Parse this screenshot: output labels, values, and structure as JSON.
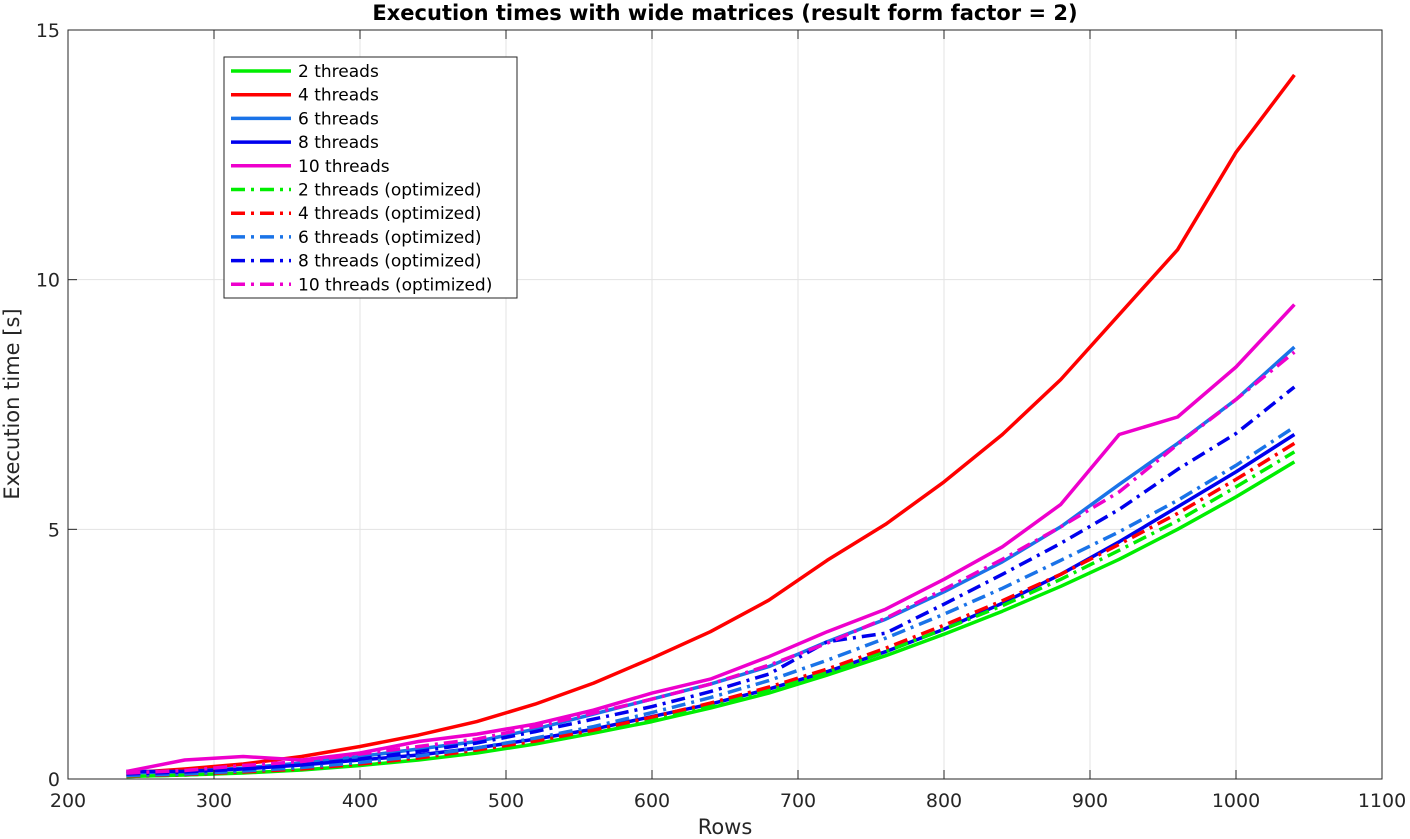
{
  "chart_data": {
    "type": "line",
    "title": "Execution times with wide matrices (result form factor = 2)",
    "xlabel": "Rows",
    "ylabel": "Execution time [s]",
    "xlim": [
      200,
      1100
    ],
    "ylim": [
      0,
      15
    ],
    "xticks": [
      "200",
      "300",
      "400",
      "500",
      "600",
      "700",
      "800",
      "900",
      "1000",
      "1100"
    ],
    "yticks": [
      "0",
      "5",
      "10",
      "15"
    ],
    "xtick_values": [
      200,
      300,
      400,
      500,
      600,
      700,
      800,
      900,
      1000,
      1100
    ],
    "ytick_values": [
      0,
      5,
      10,
      15
    ],
    "grid": true,
    "legend_position": "top-left",
    "x": [
      240,
      280,
      320,
      360,
      400,
      440,
      480,
      520,
      560,
      600,
      640,
      680,
      720,
      760,
      800,
      840,
      880,
      920,
      960,
      1000,
      1040
    ],
    "series": [
      {
        "name": "2 threads",
        "color": "#00ee00",
        "dash": "solid",
        "values": [
          0.05,
          0.08,
          0.12,
          0.18,
          0.27,
          0.38,
          0.52,
          0.7,
          0.92,
          1.15,
          1.42,
          1.72,
          2.08,
          2.47,
          2.9,
          3.36,
          3.86,
          4.4,
          5.0,
          5.65,
          6.35
        ]
      },
      {
        "name": "4 threads",
        "color": "#ff0000",
        "dash": "solid",
        "values": [
          0.12,
          0.2,
          0.3,
          0.45,
          0.65,
          0.88,
          1.15,
          1.5,
          1.92,
          2.42,
          2.95,
          3.58,
          4.38,
          5.1,
          5.95,
          6.9,
          8.0,
          9.3,
          10.6,
          12.55,
          14.1
        ]
      },
      {
        "name": "6 threads",
        "color": "#1a73e8",
        "dash": "solid",
        "values": [
          0.12,
          0.15,
          0.22,
          0.32,
          0.45,
          0.6,
          0.75,
          1.0,
          1.3,
          1.6,
          1.9,
          2.25,
          2.75,
          3.2,
          3.75,
          4.35,
          5.05,
          5.9,
          6.72,
          7.6,
          8.65
        ]
      },
      {
        "name": "8 threads",
        "color": "#0000ee",
        "dash": "solid",
        "values": [
          0.15,
          0.15,
          0.2,
          0.28,
          0.38,
          0.48,
          0.62,
          0.8,
          1.0,
          1.25,
          1.5,
          1.8,
          2.15,
          2.55,
          3.0,
          3.52,
          4.1,
          4.75,
          5.45,
          6.15,
          6.9
        ]
      },
      {
        "name": "10 threads",
        "color": "#ee00cc",
        "dash": "solid",
        "values": [
          0.15,
          0.38,
          0.45,
          0.38,
          0.52,
          0.75,
          0.9,
          1.1,
          1.38,
          1.72,
          2.0,
          2.45,
          2.95,
          3.4,
          4.0,
          4.65,
          5.5,
          6.9,
          7.25,
          8.25,
          9.5
        ]
      },
      {
        "name": "2 threads (optimized)",
        "color": "#00ee00",
        "dash": "dashdot",
        "values": [
          0.05,
          0.08,
          0.13,
          0.19,
          0.28,
          0.4,
          0.55,
          0.73,
          0.95,
          1.2,
          1.47,
          1.78,
          2.15,
          2.55,
          3.0,
          3.47,
          4.0,
          4.58,
          5.17,
          5.85,
          6.55
        ]
      },
      {
        "name": "4 threads (optimized)",
        "color": "#ff0000",
        "dash": "dashdot",
        "values": [
          0.06,
          0.09,
          0.14,
          0.2,
          0.3,
          0.42,
          0.58,
          0.76,
          0.98,
          1.24,
          1.52,
          1.84,
          2.2,
          2.62,
          3.08,
          3.57,
          4.1,
          4.7,
          5.32,
          6.0,
          6.72
        ]
      },
      {
        "name": "6 threads (optimized)",
        "color": "#1a73e8",
        "dash": "dashdot",
        "values": [
          0.07,
          0.1,
          0.16,
          0.23,
          0.33,
          0.46,
          0.62,
          0.82,
          1.05,
          1.33,
          1.63,
          1.97,
          2.38,
          2.82,
          3.3,
          3.82,
          4.38,
          4.95,
          5.58,
          6.28,
          7.05
        ]
      },
      {
        "name": "8 threads (optimized)",
        "color": "#0000ee",
        "dash": "dashdot",
        "values": [
          0.1,
          0.14,
          0.2,
          0.28,
          0.4,
          0.55,
          0.72,
          0.95,
          1.2,
          1.45,
          1.75,
          2.1,
          2.75,
          2.92,
          3.5,
          4.1,
          4.72,
          5.4,
          6.2,
          6.92,
          7.85
        ]
      },
      {
        "name": "10 threads (optimized)",
        "color": "#ee00cc",
        "dash": "dashdot",
        "values": [
          0.12,
          0.17,
          0.27,
          0.35,
          0.5,
          0.65,
          0.8,
          1.05,
          1.32,
          1.6,
          1.9,
          2.28,
          2.72,
          3.22,
          3.8,
          4.4,
          5.05,
          5.75,
          6.7,
          7.6,
          8.55
        ]
      }
    ]
  }
}
